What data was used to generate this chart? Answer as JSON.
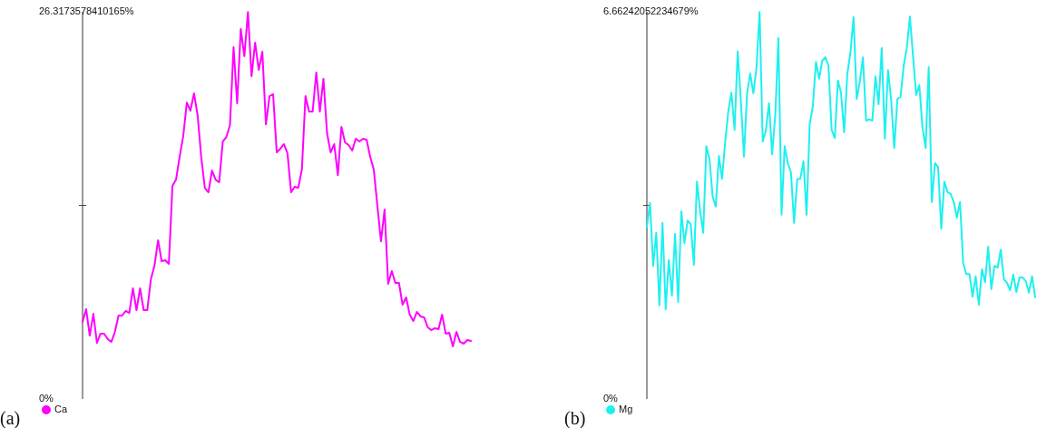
{
  "chart_data": [
    {
      "type": "line",
      "annotations": [
        "(a)"
      ],
      "legend": "bottom left",
      "tick_labels": "y",
      "ylim": [
        0,
        26.3173578410165
      ],
      "yticks": [
        {
          "value": 0,
          "label": "0%"
        },
        {
          "value": 13.15867892050825,
          "label": null
        },
        {
          "value": 26.3173578410165,
          "label": "26.3173578410165%"
        }
      ],
      "categories": [
        null,
        null,
        null,
        null,
        null,
        null,
        null,
        null,
        null,
        null,
        null,
        null,
        null,
        null,
        null,
        null,
        null,
        null,
        null,
        null,
        null,
        null,
        null,
        null,
        null,
        null,
        null,
        null,
        null,
        null,
        null,
        null,
        null,
        null,
        null,
        null,
        null,
        null,
        null,
        null,
        null,
        null,
        null,
        null,
        null,
        null,
        null,
        null,
        null,
        null,
        null,
        null,
        null,
        null,
        null,
        null,
        null,
        null,
        null,
        null,
        null,
        null,
        null,
        null,
        null,
        null,
        null,
        null,
        null,
        null,
        null,
        null,
        null,
        null,
        null,
        null,
        null,
        null,
        null,
        null,
        null,
        null,
        null,
        null,
        null,
        null,
        null,
        null,
        null,
        null,
        null,
        null,
        null,
        null,
        null,
        null,
        null,
        null,
        null,
        null,
        null,
        null,
        null,
        null,
        null,
        null,
        null,
        null,
        null
      ],
      "series": [
        {
          "name": "Ca",
          "color": "#ff00ff",
          "values": [
            5.24,
            6.1,
            4.31,
            5.79,
            3.82,
            4.44,
            4.44,
            4.07,
            3.88,
            4.56,
            5.67,
            5.67,
            5.98,
            5.85,
            7.52,
            6.04,
            7.52,
            6.04,
            6.04,
            8.14,
            9.06,
            10.79,
            9.37,
            9.43,
            9.18,
            14.48,
            14.91,
            16.46,
            17.87,
            20.15,
            19.6,
            20.77,
            19.29,
            16.46,
            14.36,
            14.05,
            15.53,
            14.91,
            14.73,
            17.5,
            17.81,
            18.61,
            23.91,
            20.09,
            25.15,
            23.3,
            26.3,
            21.94,
            24.22,
            22.37,
            23.6,
            18.67,
            20.58,
            20.71,
            16.76,
            17.01,
            17.32,
            16.7,
            14.05,
            14.42,
            14.36,
            15.59,
            20.58,
            19.54,
            19.54,
            22.19,
            19.54,
            21.76,
            18.06,
            16.76,
            17.32,
            15.22,
            18.49,
            17.44,
            17.26,
            16.89,
            17.69,
            17.5,
            17.69,
            17.63,
            16.46,
            15.59,
            13.13,
            10.72,
            12.88,
            7.83,
            8.69,
            7.89,
            7.89,
            6.41,
            6.9,
            5.73,
            5.3,
            5.92,
            5.61,
            5.55,
            4.87,
            4.68,
            4.81,
            4.75,
            5.73,
            4.44,
            4.5,
            3.57,
            4.56,
            3.88,
            3.76,
            4.01,
            3.94
          ]
        }
      ]
    },
    {
      "type": "line",
      "annotations": [
        "(b)"
      ],
      "legend": "bottom left",
      "tick_labels": "y",
      "ylim": [
        0,
        6.66242052234679
      ],
      "yticks": [
        {
          "value": 0,
          "label": "0%"
        },
        {
          "value": 3.331210261173395,
          "label": null
        },
        {
          "value": 6.66242052234679,
          "label": "6.66242052234679%"
        }
      ],
      "categories": [
        null,
        null,
        null,
        null,
        null,
        null,
        null,
        null,
        null,
        null,
        null,
        null,
        null,
        null,
        null,
        null,
        null,
        null,
        null,
        null,
        null,
        null,
        null,
        null,
        null,
        null,
        null,
        null,
        null,
        null,
        null,
        null,
        null,
        null,
        null,
        null,
        null,
        null,
        null,
        null,
        null,
        null,
        null,
        null,
        null,
        null,
        null,
        null,
        null,
        null,
        null,
        null,
        null,
        null,
        null,
        null,
        null,
        null,
        null,
        null,
        null,
        null,
        null,
        null,
        null,
        null,
        null,
        null,
        null,
        null,
        null,
        null,
        null,
        null,
        null,
        null,
        null,
        null,
        null,
        null,
        null,
        null,
        null,
        null,
        null,
        null,
        null,
        null,
        null,
        null,
        null,
        null,
        null,
        null,
        null,
        null,
        null,
        null,
        null,
        null,
        null,
        null,
        null,
        null,
        null,
        null,
        null,
        null,
        null,
        null,
        null,
        null,
        null,
        null,
        null,
        null,
        null,
        null,
        null,
        null,
        null,
        null,
        null,
        null,
        null
      ],
      "series": [
        {
          "name": "Mg",
          "color": "#1ef0f0",
          "values": [
            2.96,
            3.37,
            2.29,
            2.86,
            1.61,
            3.03,
            1.54,
            2.39,
            1.78,
            2.84,
            1.67,
            3.23,
            2.68,
            3.07,
            3.01,
            2.31,
            3.74,
            3.23,
            2.86,
            4.35,
            4.13,
            3.48,
            3.31,
            4.18,
            3.79,
            4.42,
            4.95,
            5.27,
            4.63,
            5.98,
            5.15,
            4.17,
            5.26,
            5.6,
            5.26,
            5.7,
            6.66,
            4.43,
            4.63,
            5.09,
            4.21,
            4.88,
            6.21,
            3.17,
            4.35,
            4.06,
            3.9,
            3.03,
            3.78,
            3.79,
            4.09,
            3.17,
            4.73,
            5.04,
            5.8,
            5.51,
            5.82,
            5.88,
            5.73,
            4.63,
            4.49,
            5.48,
            5.27,
            4.59,
            5.59,
            5.96,
            6.57,
            5.16,
            5.46,
            5.88,
            4.79,
            4.81,
            4.79,
            5.55,
            5.07,
            6.04,
            4.48,
            5.66,
            5.15,
            4.32,
            5.16,
            5.2,
            5.73,
            6.04,
            6.58,
            5.9,
            5.23,
            5.4,
            4.68,
            4.32,
            5.71,
            3.39,
            4.06,
            3.99,
            2.93,
            3.74,
            3.56,
            3.53,
            3.39,
            3.12,
            3.39,
            2.34,
            2.15,
            2.15,
            1.76,
            2.11,
            1.62,
            2.23,
            2.01,
            2.62,
            1.89,
            2.29,
            2.26,
            2.57,
            2.06,
            2.0,
            1.87,
            2.14,
            1.84,
            2.09,
            2.09,
            2.03,
            1.83,
            2.11,
            1.75
          ]
        }
      ]
    }
  ]
}
